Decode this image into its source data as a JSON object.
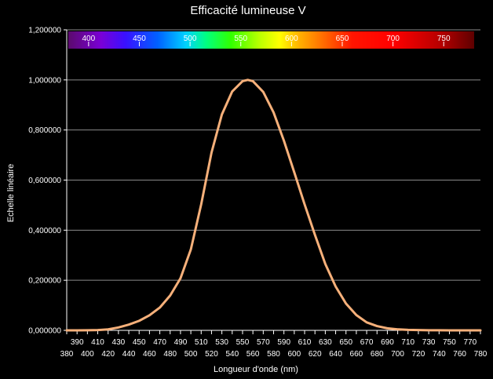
{
  "chart_data": {
    "type": "line",
    "title": "Efficacité lumineuse V",
    "xlabel": "Longueur d'onde (nm)",
    "ylabel": "Echelle linéaire",
    "xlim": [
      380,
      780
    ],
    "ylim": [
      0,
      1.2
    ],
    "y_ticks": [
      "0,000000",
      "0,200000",
      "0,400000",
      "0,600000",
      "0,800000",
      "1,000000",
      "1,200000"
    ],
    "x_ticks_upper": [
      "390",
      "410",
      "430",
      "450",
      "470",
      "490",
      "510",
      "530",
      "550",
      "570",
      "590",
      "610",
      "630",
      "650",
      "670",
      "690",
      "710",
      "730",
      "750",
      "770"
    ],
    "x_ticks_lower": [
      "380",
      "400",
      "420",
      "440",
      "460",
      "480",
      "500",
      "520",
      "540",
      "560",
      "580",
      "600",
      "620",
      "640",
      "660",
      "680",
      "700",
      "720",
      "740",
      "760",
      "780"
    ],
    "spectrum_ticks": [
      "400",
      "450",
      "500",
      "550",
      "600",
      "650",
      "700",
      "750"
    ],
    "grid": true,
    "series": [
      {
        "color": "#f6b07a",
        "x": [
          380,
          390,
          400,
          410,
          420,
          430,
          440,
          450,
          460,
          470,
          480,
          490,
          500,
          510,
          520,
          530,
          540,
          550,
          555,
          560,
          570,
          580,
          590,
          600,
          610,
          620,
          630,
          640,
          650,
          660,
          670,
          680,
          690,
          700,
          710,
          720,
          730,
          740,
          750,
          760,
          770,
          780
        ],
        "y": [
          4e-05,
          0.00012,
          0.0004,
          0.0012,
          0.004,
          0.0116,
          0.023,
          0.038,
          0.06,
          0.091,
          0.139,
          0.208,
          0.323,
          0.503,
          0.71,
          0.862,
          0.954,
          0.995,
          1.0,
          0.995,
          0.952,
          0.87,
          0.757,
          0.631,
          0.503,
          0.381,
          0.265,
          0.175,
          0.107,
          0.061,
          0.032,
          0.017,
          0.0082,
          0.0041,
          0.0021,
          0.00105,
          0.00052,
          0.00025,
          0.00012,
          6e-05,
          3e-05,
          1.5e-05
        ]
      }
    ]
  }
}
